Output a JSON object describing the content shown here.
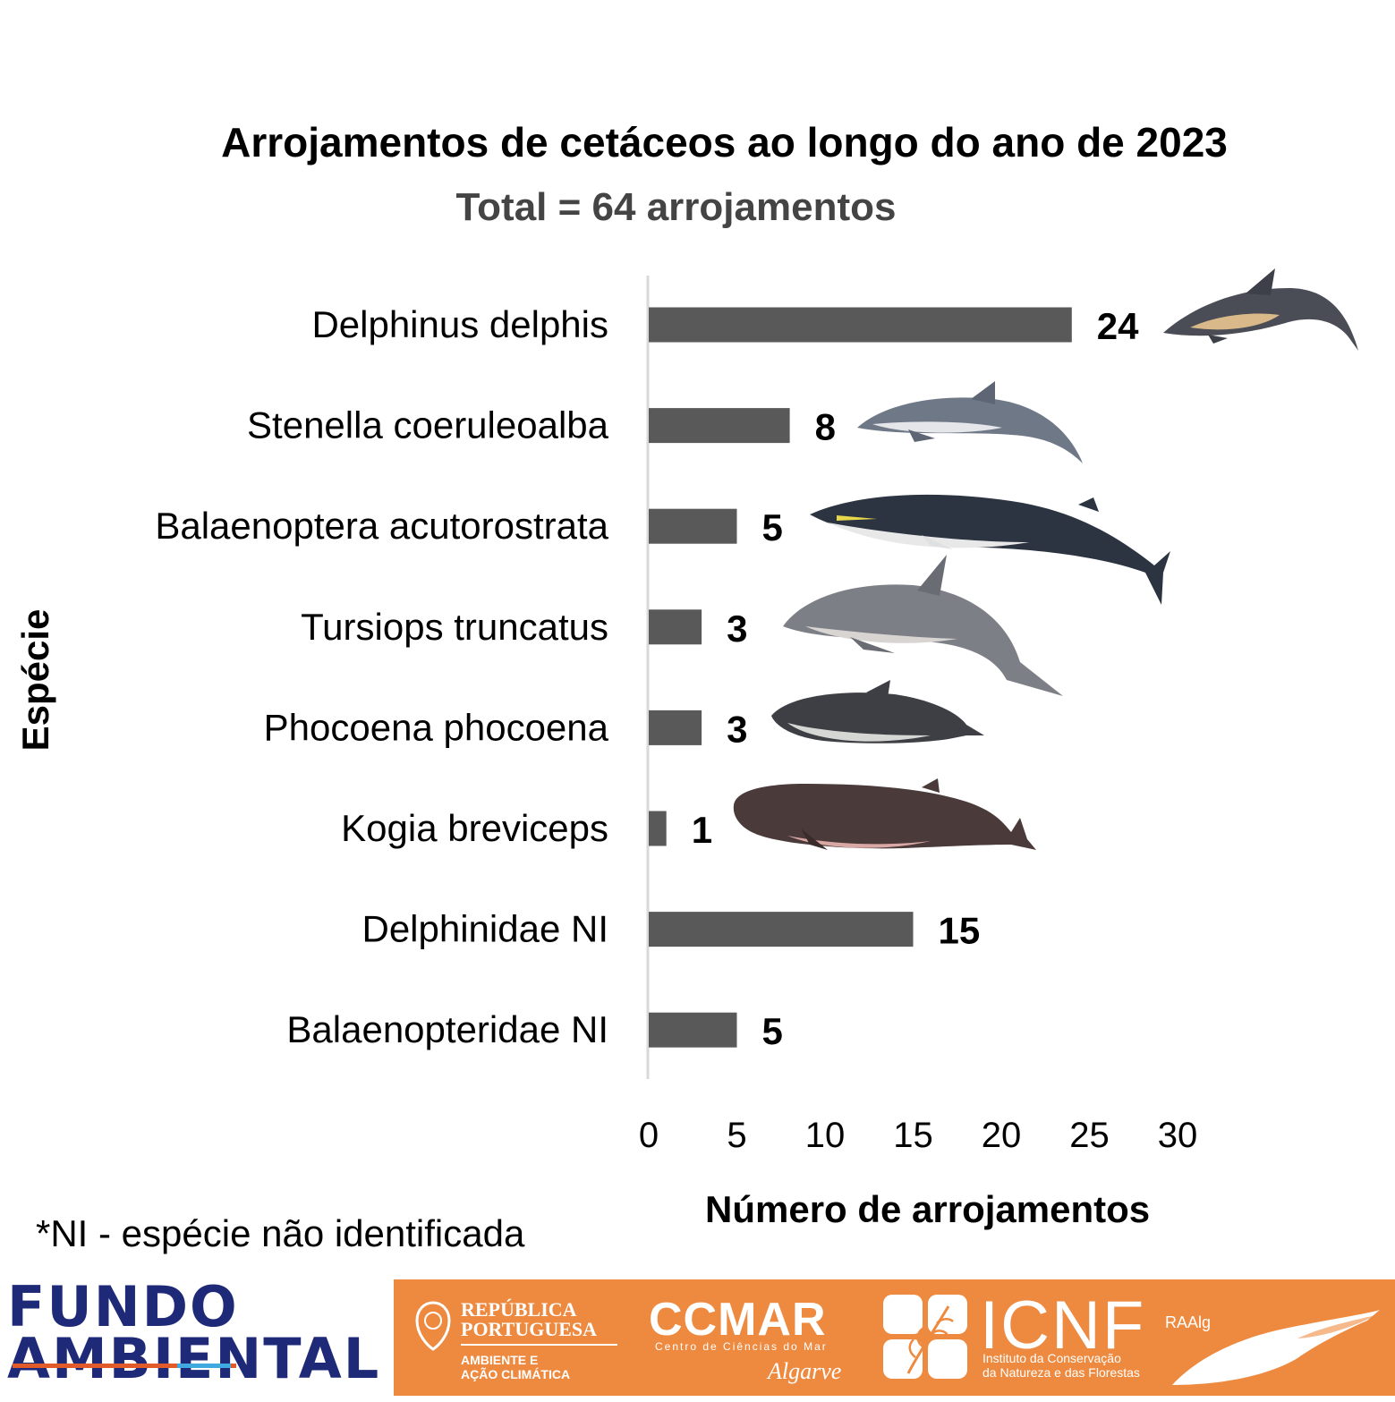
{
  "chart_data": {
    "type": "bar",
    "orientation": "horizontal",
    "title": "Arrojamentos de cetáceos ao longo do ano de 2023",
    "subtitle": "Total = 64 arrojamentos",
    "xlabel": "Número de arrojamentos",
    "ylabel": "Espécie",
    "categories": [
      "Delphinus delphis",
      "Stenella coeruleoalba",
      "Balaenoptera acutorostrata",
      "Tursiops truncatus",
      "Phocoena phocoena",
      "Kogia breviceps",
      "Delphinidae NI",
      "Balaenopteridae NI"
    ],
    "values": [
      24,
      8,
      5,
      3,
      3,
      1,
      15,
      5
    ],
    "xlim": [
      0,
      30
    ],
    "xticks": [
      0,
      5,
      10,
      15,
      20,
      25,
      30
    ],
    "grid": false,
    "bar_color": "#595959",
    "data_labels": true
  },
  "footnote": "*NI - espécie não identificada",
  "footer": {
    "background_color": "#ee8a3f",
    "fundo_ambiental": [
      "FUNDO",
      "AMBIENTAL"
    ],
    "republica": [
      "REPÚBLICA",
      "PORTUGUESA"
    ],
    "republica_sub": [
      "AMBIENTE E",
      "AÇÃO CLIMÁTICA"
    ],
    "ccmar": "CCMAR",
    "ccmar_sub": "Centro de Ciências do Mar",
    "ccmar_region": "Algarve",
    "icnf": "ICNF",
    "icnf_sub": [
      "Instituto da Conservação",
      "da Natureza e das Florestas"
    ],
    "raalg": "RAAlg"
  },
  "images": [
    "common-dolphin-illustration",
    "striped-dolphin-illustration",
    "minke-whale-illustration",
    "bottlenose-dolphin-illustration",
    "harbour-porpoise-illustration",
    "pygmy-sperm-whale-illustration"
  ]
}
